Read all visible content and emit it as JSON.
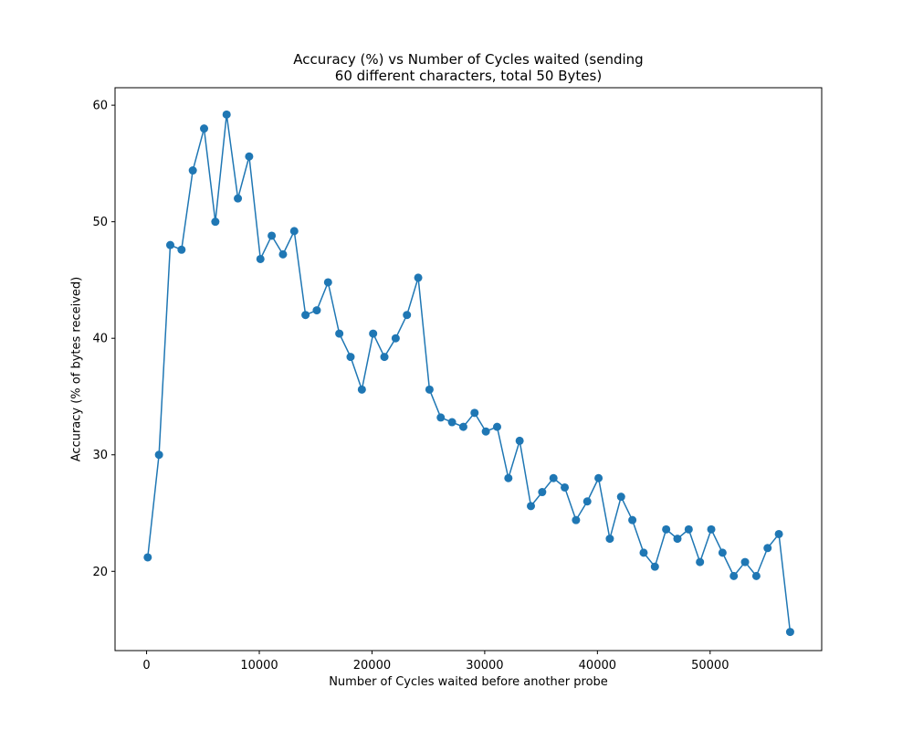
{
  "chart_data": {
    "type": "line",
    "title_lines": [
      "Accuracy (%) vs Number of Cycles waited (sending",
      "60 different characters, total 50 Bytes)"
    ],
    "xlabel": "Number of Cycles waited before another probe",
    "ylabel": "Accuracy (% of bytes received)",
    "xlim": [
      -2800,
      59900
    ],
    "ylim": [
      13.2,
      61.5
    ],
    "xticks": [
      0,
      10000,
      20000,
      30000,
      40000,
      50000
    ],
    "yticks": [
      20,
      30,
      40,
      50,
      60
    ],
    "grid": false,
    "markers": true,
    "color": "#1f77b4",
    "series": [
      {
        "x": [
          100,
          1100,
          2100,
          3100,
          4100,
          5100,
          6100,
          7100,
          8100,
          9100,
          10100,
          11100,
          12100,
          13100,
          14100,
          15100,
          16100,
          17100,
          18100,
          19100,
          20100,
          21100,
          22100,
          23100,
          24100,
          25100,
          26100,
          27100,
          28100,
          29100,
          30100,
          31100,
          32100,
          33100,
          34100,
          35100,
          36100,
          37100,
          38100,
          39100,
          40100,
          41100,
          42100,
          43100,
          44100,
          45100,
          46100,
          47100,
          48100,
          49100,
          50100,
          51100,
          52100,
          53100,
          54100,
          55100,
          56100,
          57100
        ],
        "values": [
          21.2,
          30,
          48,
          47.6,
          54.4,
          58,
          50,
          59.2,
          52,
          55.6,
          46.8,
          48.8,
          47.2,
          49.2,
          42,
          42.4,
          44.8,
          40.4,
          38.4,
          35.6,
          40.4,
          38.4,
          40,
          42,
          45.2,
          35.6,
          33.2,
          32.8,
          32.4,
          33.6,
          32,
          32.4,
          28,
          31.2,
          25.6,
          26.8,
          28,
          27.2,
          24.4,
          26,
          28,
          22.8,
          26.4,
          24.4,
          21.6,
          20.4,
          23.6,
          22.8,
          23.6,
          20.8,
          23.6,
          21.6,
          19.6,
          20.8,
          19.6,
          22,
          23.2,
          14.8
        ]
      }
    ]
  }
}
